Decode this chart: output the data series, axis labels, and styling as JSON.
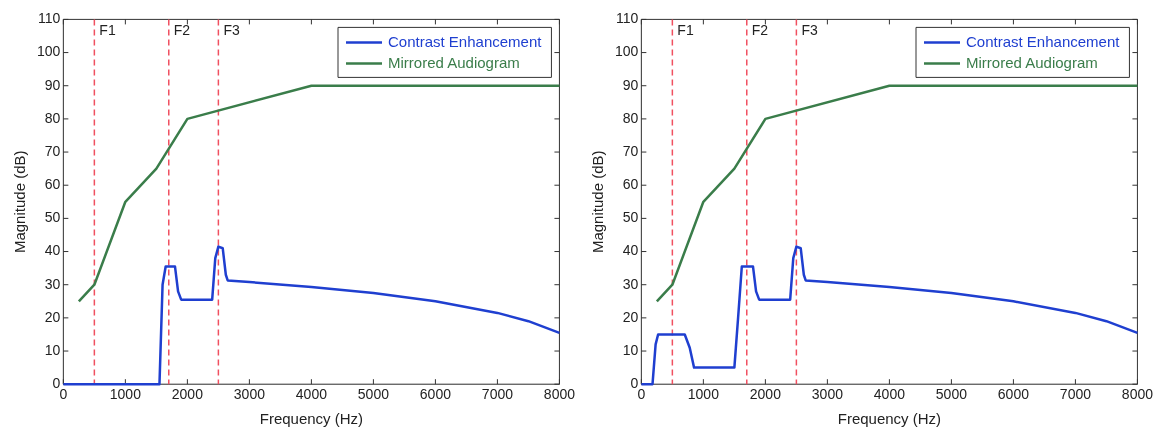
{
  "chart_data": [
    {
      "type": "line",
      "xlabel": "Frequency (Hz)",
      "ylabel": "Magnitude (dB)",
      "xlim": [
        0,
        8000
      ],
      "xticks": [
        0,
        1000,
        2000,
        3000,
        4000,
        5000,
        6000,
        7000,
        8000
      ],
      "ylim": [
        0,
        110
      ],
      "yticks": [
        0,
        10,
        20,
        30,
        40,
        50,
        60,
        70,
        80,
        90,
        100,
        110
      ],
      "grid": false,
      "legend": "top right",
      "marker": "none",
      "line_style": "solid",
      "series": [
        {
          "name": "Contrast Enhancement",
          "color": "#1f3fd0",
          "x": [
            0,
            1550,
            1600,
            1650,
            1800,
            1850,
            1900,
            2400,
            2450,
            2500,
            2570,
            2620,
            2650,
            3000,
            4000,
            5000,
            6000,
            7000,
            7500,
            8000
          ],
          "values": [
            0,
            0,
            30,
            35.5,
            35.5,
            28,
            25.5,
            25.5,
            38,
            41.5,
            41,
            33,
            31.3,
            30.8,
            29.3,
            27.5,
            25,
            21.5,
            19,
            15.5
          ]
        },
        {
          "name": "Mirrored Audiogram",
          "color": "#3a7d4a",
          "x": [
            250,
            500,
            1000,
            1500,
            2000,
            4000,
            8000
          ],
          "values": [
            25,
            30,
            55,
            65,
            80,
            90,
            90
          ]
        }
      ],
      "ref_lines": [
        {
          "axis": "x",
          "value": 500,
          "label": "F1",
          "color": "#f05060",
          "line_style": "dashed"
        },
        {
          "axis": "x",
          "value": 1700,
          "label": "F2",
          "color": "#f05060",
          "line_style": "dashed"
        },
        {
          "axis": "x",
          "value": 2500,
          "label": "F3",
          "color": "#f05060",
          "line_style": "dashed"
        }
      ]
    },
    {
      "type": "line",
      "xlabel": "Frequency (Hz)",
      "ylabel": "Magnitude (dB)",
      "xlim": [
        0,
        8000
      ],
      "xticks": [
        0,
        1000,
        2000,
        3000,
        4000,
        5000,
        6000,
        7000,
        8000
      ],
      "ylim": [
        0,
        110
      ],
      "yticks": [
        0,
        10,
        20,
        30,
        40,
        50,
        60,
        70,
        80,
        90,
        100,
        110
      ],
      "grid": false,
      "legend": "top right",
      "marker": "none",
      "line_style": "solid",
      "series": [
        {
          "name": "Contrast Enhancement",
          "color": "#1f3fd0",
          "x": [
            0,
            180,
            230,
            270,
            700,
            780,
            850,
            1500,
            1560,
            1620,
            1800,
            1850,
            1900,
            2400,
            2450,
            2500,
            2570,
            2620,
            2650,
            3000,
            4000,
            5000,
            6000,
            7000,
            7500,
            8000
          ],
          "values": [
            0,
            0,
            12,
            15,
            15,
            11,
            5,
            5,
            20,
            35.5,
            35.5,
            28,
            25.5,
            25.5,
            38,
            41.5,
            41,
            33,
            31.3,
            30.8,
            29.3,
            27.5,
            25,
            21.5,
            19,
            15.5
          ]
        },
        {
          "name": "Mirrored Audiogram",
          "color": "#3a7d4a",
          "x": [
            250,
            500,
            1000,
            1500,
            2000,
            4000,
            8000
          ],
          "values": [
            25,
            30,
            55,
            65,
            80,
            90,
            90
          ]
        }
      ],
      "ref_lines": [
        {
          "axis": "x",
          "value": 500,
          "label": "F1",
          "color": "#f05060",
          "line_style": "dashed"
        },
        {
          "axis": "x",
          "value": 1700,
          "label": "F2",
          "color": "#f05060",
          "line_style": "dashed"
        },
        {
          "axis": "x",
          "value": 2500,
          "label": "F3",
          "color": "#f05060",
          "line_style": "dashed"
        }
      ]
    }
  ]
}
